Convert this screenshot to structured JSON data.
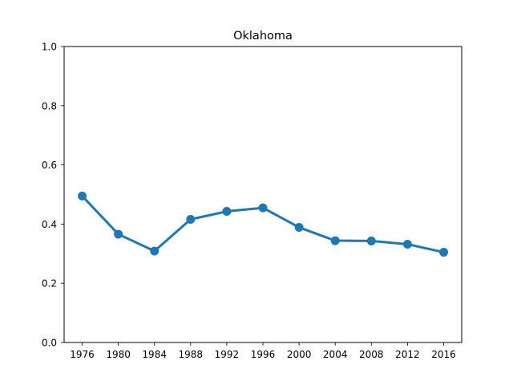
{
  "chart_data": {
    "type": "line",
    "title": "Oklahoma",
    "xlabel": "",
    "ylabel": "",
    "categories": [
      "1976",
      "1980",
      "1984",
      "1988",
      "1992",
      "1996",
      "2000",
      "2004",
      "2008",
      "2012",
      "2016"
    ],
    "series": [
      {
        "values": [
          0.495,
          0.366,
          0.309,
          0.416,
          0.443,
          0.455,
          0.389,
          0.344,
          0.343,
          0.332,
          0.305
        ],
        "color": "#1f77b4"
      }
    ],
    "ylim": [
      0.0,
      1.0
    ],
    "yticks": [
      "0.0",
      "0.2",
      "0.4",
      "0.6",
      "0.8",
      "1.0"
    ],
    "grid": false,
    "legend": false,
    "markers": "circle"
  }
}
